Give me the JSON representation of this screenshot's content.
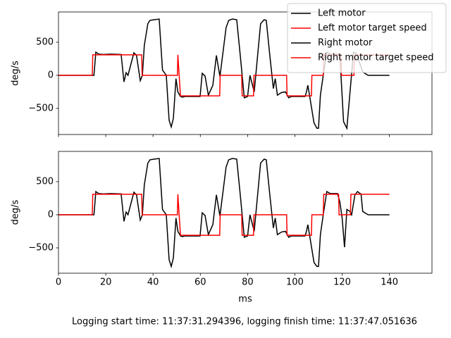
{
  "chart_data": [
    {
      "type": "line",
      "ylabel": "deg/s",
      "xlim": [
        0,
        158
      ],
      "xticks": [
        0,
        20,
        40,
        60,
        80,
        100,
        120,
        140
      ],
      "show_xtick_labels": false,
      "ylim": [
        -894,
        957
      ],
      "yticks": [
        {
          "value": -500,
          "label": "−500"
        },
        0,
        500
      ],
      "legend": "upper right",
      "series": [
        {
          "name": "Left motor",
          "color": "#000000",
          "x": [
            0,
            15,
            15.8,
            17,
            19,
            22,
            26.5,
            27.7,
            28.6,
            29.4,
            31.9,
            33,
            34.6,
            35.5,
            36.3,
            37.8,
            38.7,
            40.5,
            42.6,
            44,
            45.6,
            46.8,
            47.7,
            48.6,
            49.7,
            50.5,
            51.6,
            52.5,
            53.5,
            59.9,
            60.8,
            62,
            63.4,
            65.3,
            66.8,
            68.3,
            70.9,
            72,
            73.6,
            75.4,
            76.9,
            78.6,
            80,
            81,
            82.8,
            85.5,
            87,
            87.9,
            89.4,
            90.9,
            91.7,
            92.6,
            94.4,
            96,
            97.4,
            98.5,
            104.3,
            104.9,
            105.5,
            108.1,
            109.3,
            110,
            110.8,
            112,
            113.5,
            115,
            119,
            120.6,
            122,
            124.8,
            126,
            128.7,
            131,
            140
          ],
          "values": [
            0,
            0,
            350,
            320,
            315,
            320,
            315,
            -100,
            40,
            0,
            340,
            300,
            -80,
            0,
            450,
            780,
            830,
            840,
            850,
            80,
            0,
            -680,
            -780,
            -650,
            -50,
            -250,
            -320,
            -330,
            -320,
            -320,
            30,
            -10,
            -300,
            -150,
            300,
            -20,
            720,
            830,
            850,
            840,
            300,
            -340,
            -320,
            0,
            -250,
            780,
            840,
            830,
            300,
            -200,
            -50,
            -300,
            -260,
            -250,
            -340,
            -320,
            -320,
            -250,
            -150,
            -720,
            -800,
            -800,
            -300,
            0,
            350,
            320,
            320,
            -700,
            -800,
            350,
            330,
            50,
            0,
            0
          ]
        },
        {
          "name": "Left motor target speed",
          "color": "#ff0000",
          "x": [
            0,
            14.3,
            14.5,
            35.2,
            35.4,
            50.3,
            50.5,
            51.6,
            68.2,
            68.4,
            77.5,
            77.7,
            82.5,
            82.7,
            96.5,
            96.7,
            107,
            107.2,
            112,
            112.2,
            119.5,
            119.7,
            125,
            125.2,
            140
          ],
          "values": [
            0,
            0,
            310,
            310,
            0,
            0,
            310,
            -310,
            -310,
            0,
            0,
            -310,
            -310,
            0,
            0,
            -310,
            -310,
            0,
            0,
            310,
            310,
            0,
            0,
            310,
            310
          ]
        }
      ]
    },
    {
      "type": "line",
      "ylabel": "deg/s",
      "xlabel": "ms",
      "xlim": [
        0,
        158
      ],
      "xticks": [
        0,
        20,
        40,
        60,
        80,
        100,
        120,
        140
      ],
      "show_xtick_labels": true,
      "ylim": [
        -883,
        957
      ],
      "yticks": [
        {
          "value": -500,
          "label": "−500"
        },
        0,
        500
      ],
      "series": [
        {
          "name": "Right motor",
          "color": "#000000",
          "x": [
            0,
            15,
            15.8,
            17,
            19,
            22,
            26.5,
            27.7,
            28.6,
            29.4,
            31.9,
            33,
            34.6,
            35.5,
            36.3,
            37.8,
            38.7,
            40.5,
            42.6,
            44,
            45.6,
            46.8,
            47.7,
            48.6,
            49.7,
            50.5,
            51.6,
            52.5,
            53.5,
            59.9,
            60.8,
            62,
            63.4,
            65.3,
            66.8,
            68.3,
            70.9,
            72,
            73.6,
            75.4,
            76.9,
            78.6,
            80,
            81,
            82.8,
            85.5,
            87,
            87.9,
            89.4,
            90.9,
            91.7,
            92.6,
            94.4,
            96,
            97.4,
            98.5,
            104.3,
            104.9,
            105.5,
            108.1,
            109.3,
            110,
            110.8,
            112,
            113.5,
            115,
            118,
            119,
            120,
            121,
            122,
            123.3,
            124,
            125.4,
            126.5,
            128,
            128.7,
            131,
            140
          ],
          "values": [
            0,
            0,
            350,
            320,
            315,
            320,
            315,
            -100,
            40,
            0,
            340,
            300,
            -80,
            0,
            450,
            780,
            830,
            840,
            850,
            80,
            0,
            -680,
            -780,
            -650,
            -50,
            -250,
            -320,
            -330,
            -320,
            -320,
            30,
            -10,
            -300,
            -150,
            300,
            -20,
            720,
            830,
            850,
            840,
            300,
            -340,
            -320,
            0,
            -250,
            780,
            840,
            830,
            300,
            -200,
            -50,
            -300,
            -260,
            -250,
            -340,
            -320,
            -320,
            -250,
            -150,
            -720,
            -780,
            -780,
            -300,
            0,
            350,
            320,
            320,
            200,
            -50,
            -490,
            80,
            50,
            0,
            300,
            350,
            310,
            50,
            0,
            0
          ]
        },
        {
          "name": "Right motor target speed",
          "color": "#ff0000",
          "x": [
            0,
            14.3,
            14.5,
            35.2,
            35.4,
            50.3,
            50.5,
            51.6,
            68.2,
            68.4,
            77.5,
            77.7,
            82.5,
            82.7,
            96.5,
            96.7,
            107,
            107.2,
            112,
            112.2,
            118.5,
            118.7,
            123.5,
            123.7,
            140
          ],
          "values": [
            0,
            0,
            310,
            310,
            0,
            0,
            310,
            -310,
            -310,
            0,
            0,
            -310,
            -310,
            0,
            0,
            -310,
            -310,
            0,
            0,
            310,
            310,
            0,
            0,
            310,
            310
          ]
        }
      ]
    }
  ],
  "footer": "Logging start time: 11:37:31.294396, logging finish time: 11:37:47.051636"
}
